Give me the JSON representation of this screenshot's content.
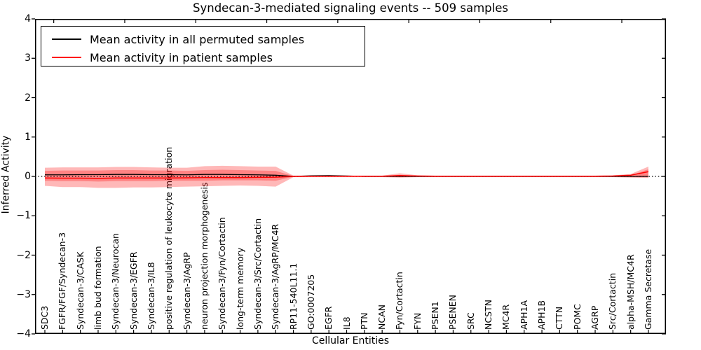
{
  "title": "Syndecan-3-mediated signaling events -- 509 samples",
  "legend": [
    {
      "label": "Mean activity in all permuted samples",
      "color": "#000000"
    },
    {
      "label": "Mean activity in patient samples",
      "color": "#ff0000"
    }
  ],
  "axes": {
    "ylabel": "Inferred Activity",
    "xlabel": "Cellular Entities",
    "ylim": [
      -4,
      4
    ],
    "yticks": [
      4,
      3,
      2,
      1,
      0,
      -1,
      -2,
      -3,
      -4
    ],
    "grid": false,
    "legend_position": "upper left"
  },
  "colors": {
    "band_fill": "rgba(255,0,0,0.28)",
    "permuted_line": "#000000",
    "patient_line": "#ff0000",
    "zero_line": "#000000",
    "frame": "#000000",
    "background": "#ffffff"
  },
  "chart_data": {
    "type": "line",
    "title": "Syndecan-3-mediated signaling events -- 509 samples",
    "xlabel": "Cellular Entities",
    "ylabel": "Inferred Activity",
    "ylim": [
      -4,
      4
    ],
    "categories": [
      "SDC3",
      "FGFR/FGF/Syndecan-3",
      "Syndecan-3/CASK",
      "limb bud formation",
      "Syndecan-3/Neurocan",
      "Syndecan-3/EGFR",
      "Syndecan-3/IL8",
      "positive regulation of leukocyte migration",
      "Syndecan-3/AgRP",
      "neuron projection morphogenesis",
      "Syndecan-3/Fyn/Cortactin",
      "long-term memory",
      "Syndecan-3/Src/Cortactin",
      "Syndecan-3/AgRP/MC4R",
      "RP11-540L11.1",
      "GO:0007205",
      "EGFR",
      "IL8",
      "PTN",
      "NCAN",
      "Fyn/Cortactin",
      "FYN",
      "PSEN1",
      "PSENEN",
      "SRC",
      "NCSTN",
      "MC4R",
      "APH1A",
      "APH1B",
      "CTTN",
      "POMC",
      "AGRP",
      "Src/Cortactin",
      "alpha-MSH/MC4R",
      "Gamma Secretase"
    ],
    "series": [
      {
        "name": "Mean activity in all permuted samples",
        "color": "#000000",
        "width": 1.3,
        "values": [
          0.04,
          0.04,
          0.045,
          0.045,
          0.05,
          0.05,
          0.045,
          0.045,
          0.04,
          0.05,
          0.05,
          0.045,
          0.04,
          0.03,
          0.0,
          0.015,
          0.02,
          0.01,
          0.0,
          0.0,
          0.0,
          0.0,
          0.0,
          0.0,
          0.0,
          0.0,
          0.0,
          0.0,
          0.0,
          0.0,
          0.0,
          0.0,
          0.0,
          0.0,
          0.0
        ]
      },
      {
        "name": "Mean activity in patient samples",
        "color": "#ff0000",
        "width": 1.5,
        "values": [
          -0.04,
          -0.045,
          -0.045,
          -0.05,
          -0.04,
          -0.04,
          -0.04,
          -0.04,
          -0.035,
          -0.03,
          -0.03,
          -0.03,
          -0.025,
          -0.02,
          0.0,
          0.005,
          0.005,
          0.005,
          0.005,
          0.005,
          0.02,
          0.01,
          0.005,
          0.005,
          0.005,
          0.005,
          0.005,
          0.005,
          0.005,
          0.005,
          0.005,
          0.005,
          0.01,
          0.03,
          0.12
        ]
      }
    ],
    "bands": [
      {
        "name": "activity-envelope-outer",
        "fill": "rgba(255,0,0,0.28)",
        "upper": [
          0.22,
          0.23,
          0.23,
          0.23,
          0.24,
          0.24,
          0.23,
          0.22,
          0.22,
          0.26,
          0.27,
          0.26,
          0.25,
          0.25,
          0.02,
          0.02,
          0.03,
          0.02,
          0.02,
          0.02,
          0.08,
          0.03,
          0.02,
          0.02,
          0.02,
          0.02,
          0.02,
          0.02,
          0.02,
          0.02,
          0.02,
          0.02,
          0.03,
          0.06,
          0.25
        ],
        "lower": [
          -0.24,
          -0.27,
          -0.27,
          -0.29,
          -0.29,
          -0.28,
          -0.28,
          -0.27,
          -0.26,
          -0.25,
          -0.24,
          -0.23,
          -0.24,
          -0.26,
          -0.02,
          -0.02,
          -0.02,
          -0.02,
          -0.02,
          -0.02,
          -0.03,
          -0.02,
          -0.02,
          -0.02,
          -0.02,
          -0.02,
          -0.02,
          -0.02,
          -0.02,
          -0.02,
          -0.02,
          -0.02,
          -0.02,
          -0.03,
          -0.04
        ]
      },
      {
        "name": "activity-envelope-inner",
        "fill": "rgba(255,0,0,0.28)",
        "upper": [
          0.14,
          0.15,
          0.15,
          0.15,
          0.16,
          0.16,
          0.15,
          0.15,
          0.14,
          0.16,
          0.17,
          0.16,
          0.15,
          0.14,
          0.01,
          0.01,
          0.015,
          0.01,
          0.01,
          0.01,
          0.04,
          0.015,
          0.01,
          0.01,
          0.01,
          0.01,
          0.01,
          0.01,
          0.01,
          0.01,
          0.01,
          0.01,
          0.015,
          0.03,
          0.18
        ],
        "lower": [
          -0.11,
          -0.12,
          -0.12,
          -0.13,
          -0.12,
          -0.12,
          -0.12,
          -0.11,
          -0.11,
          -0.11,
          -0.1,
          -0.1,
          -0.1,
          -0.11,
          -0.01,
          -0.01,
          -0.01,
          -0.01,
          -0.01,
          -0.01,
          -0.015,
          -0.01,
          -0.01,
          -0.01,
          -0.01,
          -0.01,
          -0.01,
          -0.01,
          -0.01,
          -0.01,
          -0.01,
          -0.01,
          -0.01,
          -0.015,
          -0.02
        ]
      }
    ],
    "zero_line": {
      "y": 0,
      "style": "dotted"
    }
  }
}
